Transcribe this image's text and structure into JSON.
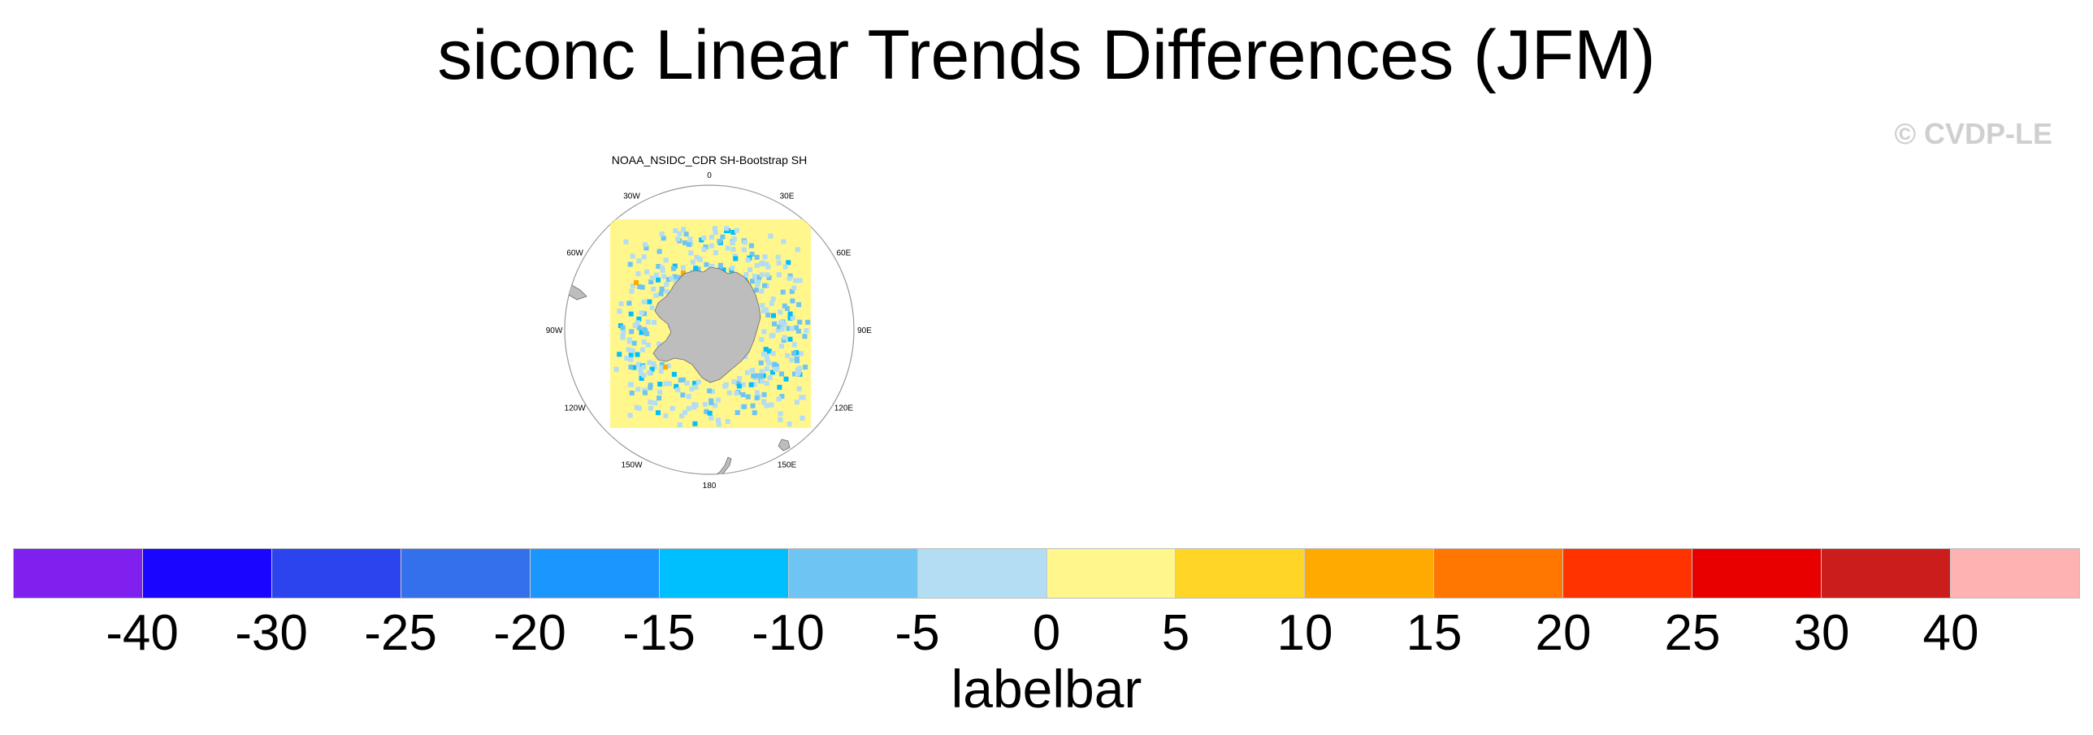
{
  "title": "siconc Linear Trends Differences (JFM)",
  "watermark": "© CVDP-LE",
  "map": {
    "title": "NOAA_NSIDC_CDR SH-Bootstrap SH",
    "projection": "south-polar-stereographic",
    "longitude_labels": [
      "0",
      "30E",
      "60E",
      "90E",
      "120E",
      "150E",
      "180",
      "150W",
      "120W",
      "90W",
      "60W",
      "30W"
    ],
    "land_color": "#bdbdbd",
    "ocean_field_color": "#fff68c"
  },
  "colorbar": {
    "label": "labelbar",
    "tick_labels": [
      "-40",
      "-30",
      "-25",
      "-20",
      "-15",
      "-10",
      "-5",
      "0",
      "5",
      "10",
      "15",
      "20",
      "25",
      "30",
      "40"
    ],
    "colors": [
      "#8020ee",
      "#1a05ff",
      "#2c44ee",
      "#3470ec",
      "#1c96ff",
      "#00bfff",
      "#6ec4f2",
      "#b2ddf2",
      "#fff68c",
      "#ffd626",
      "#ffaa00",
      "#ff7700",
      "#ff3300",
      "#e80000",
      "#cc1d1d",
      "#ffb2b2"
    ]
  }
}
